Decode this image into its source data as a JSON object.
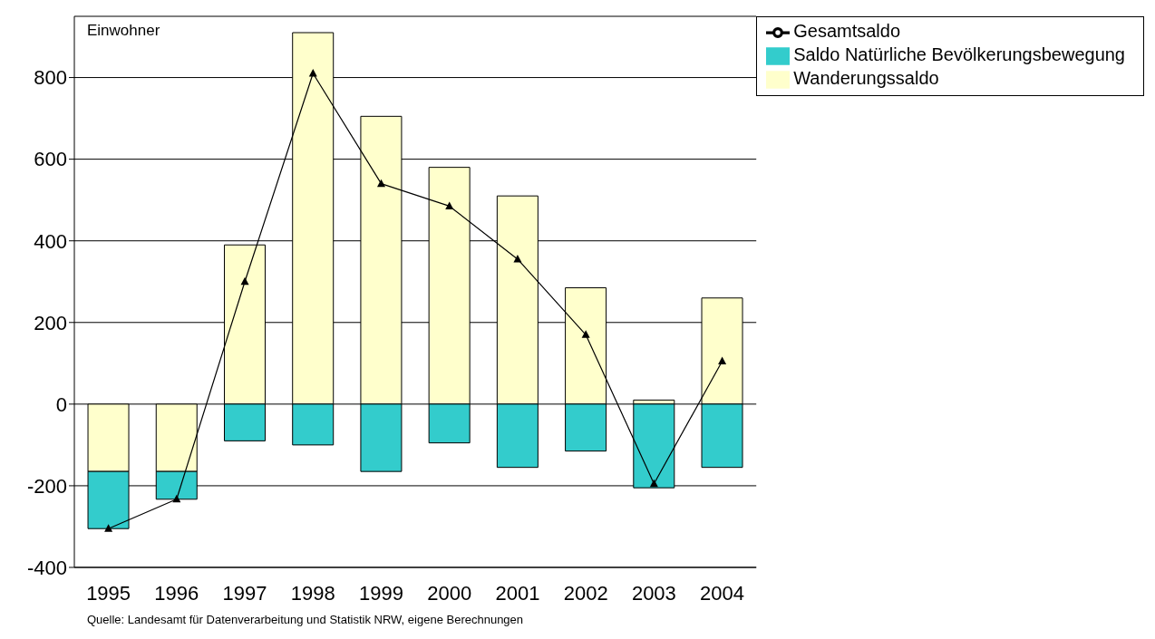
{
  "chart_data": {
    "type": "bar",
    "stacked": true,
    "ylabel": "Einwohner",
    "categories": [
      "1995",
      "1996",
      "1997",
      "1998",
      "1999",
      "2000",
      "2001",
      "2002",
      "2003",
      "2004"
    ],
    "series": [
      {
        "name": "Wanderungssaldo",
        "color": "#ffffcc",
        "values": [
          -165,
          -165,
          390,
          910,
          705,
          580,
          510,
          285,
          10,
          260
        ]
      },
      {
        "name": "Saldo Natürliche Bevölkerungsbewegung",
        "color": "#33cccc",
        "values": [
          -140,
          -68,
          -90,
          -100,
          -165,
          -95,
          -155,
          -115,
          -205,
          -155
        ]
      },
      {
        "name": "Gesamtsaldo",
        "type": "line",
        "color": "#000000",
        "marker": "triangle",
        "values": [
          -305,
          -233,
          300,
          810,
          540,
          485,
          355,
          170,
          -195,
          105
        ]
      }
    ],
    "ylim": [
      -400,
      950
    ],
    "yticks": [
      -400,
      -200,
      0,
      200,
      400,
      600,
      800
    ],
    "grid": "y",
    "legend": "top right",
    "annotations": [
      "Quelle: Landesamt für Datenverarbeitung und Statistik NRW, eigene Berechnungen"
    ]
  }
}
